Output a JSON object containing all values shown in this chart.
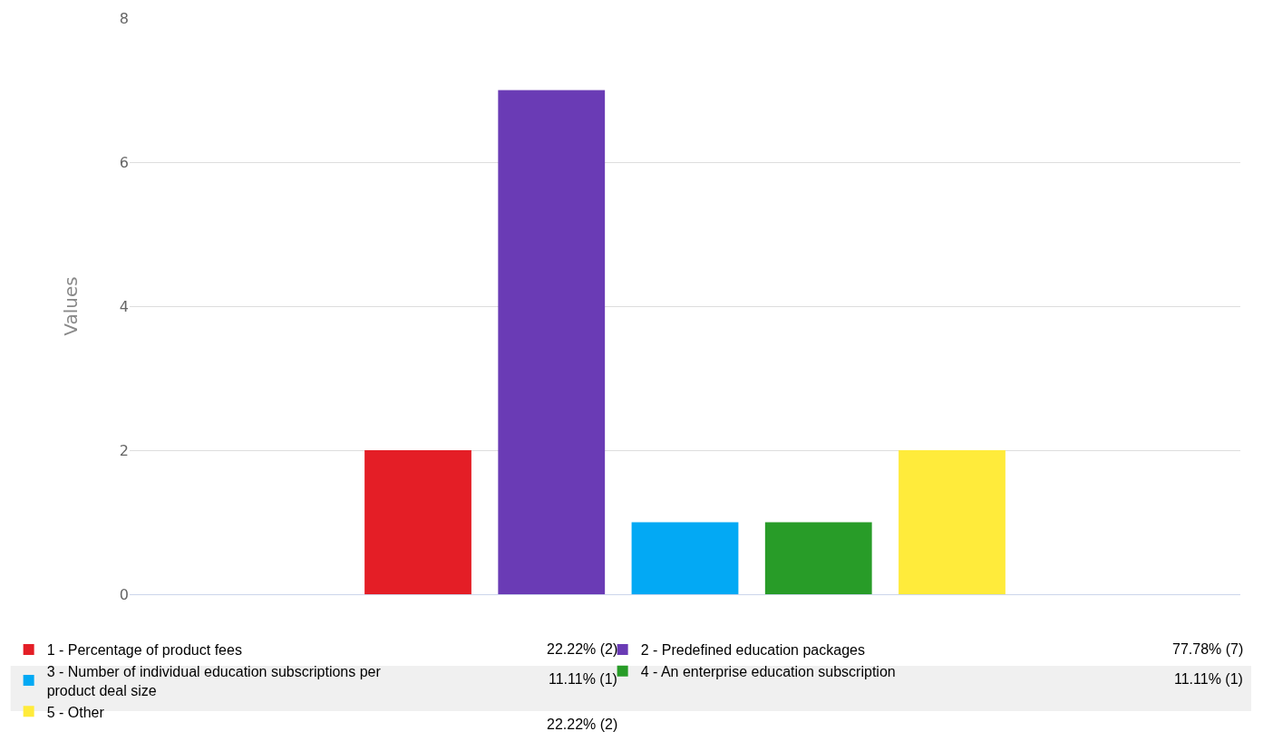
{
  "chart_data": {
    "type": "bar",
    "ylabel": "Values",
    "categories": [
      null
    ],
    "series": [
      {
        "name": "1 - Percentage of product fees",
        "color": "#e41e26",
        "values": [
          2
        ]
      },
      {
        "name": "2 - Predefined education packages",
        "color": "#6a3bb5",
        "values": [
          7
        ]
      },
      {
        "name": "3 - Number of individual education subscriptions per product deal size",
        "color": "#03a9f4",
        "values": [
          1
        ]
      },
      {
        "name": "4 - An enterprise education subscription",
        "color": "#289c28",
        "values": [
          1
        ]
      },
      {
        "name": "5 - Other",
        "color": "#ffeb3b",
        "values": [
          2
        ]
      }
    ],
    "annotations": [
      "22.22% (2)",
      "77.78% (7)",
      "11.11% (1)",
      "11.11% (1)",
      "22.22% (2)"
    ],
    "ylim": [
      0,
      8
    ],
    "yticks": [
      0,
      2,
      4,
      6,
      8
    ],
    "grid": "y",
    "legend": "bottom",
    "tick_labels": "y"
  }
}
